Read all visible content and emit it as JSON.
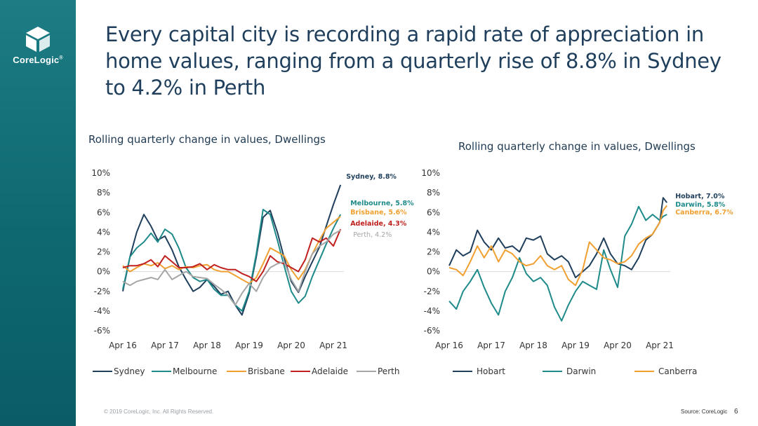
{
  "brand": {
    "name": "CoreLogic",
    "registered": "®"
  },
  "headline": "Every capital city is recording a rapid rate of appreciation in home values, ranging from a quarterly rise of 8.8% in Sydney to 4.2% in Perth",
  "footer": {
    "copyright": "© 2019 CoreLogic, Inc. All Rights Reserved.",
    "source": "Source: CoreLogic",
    "page": "6"
  },
  "colors": {
    "sidebar": "#0e6870",
    "sydney": "#1f3f5c",
    "melbourne": "#1f8a8a",
    "brisbane": "#f0a030",
    "adelaide": "#c0201e",
    "perth": "#a6a6a6",
    "hobart": "#1f3f5c",
    "darwin": "#1f8a8a",
    "canberra": "#f0a030"
  },
  "chart_data": [
    {
      "type": "line",
      "title": "Rolling quarterly change in values,  Dwellings",
      "y_ticks": [
        "10%",
        "8%",
        "6%",
        "4%",
        "2%",
        "0%",
        "-2%",
        "-4%",
        "-6%"
      ],
      "x_ticks": [
        "Apr 16",
        "Apr 17",
        "Apr 18",
        "Apr 19",
        "Apr 20",
        "Apr 21"
      ],
      "ylim": [
        -6,
        10
      ],
      "xlim": [
        2016.25,
        2021.5
      ],
      "legend": "bottom",
      "series": [
        {
          "name": "Sydney",
          "color": "#1f3f5c",
          "label": "Sydney, 8.8%",
          "x": [
            2016.25,
            2016.42,
            2016.58,
            2016.75,
            2016.92,
            2017.08,
            2017.25,
            2017.42,
            2017.58,
            2017.75,
            2017.92,
            2018.08,
            2018.25,
            2018.42,
            2018.58,
            2018.75,
            2018.92,
            2019.08,
            2019.25,
            2019.42,
            2019.58,
            2019.75,
            2019.92,
            2020.08,
            2020.25,
            2020.42,
            2020.58,
            2020.75,
            2020.92,
            2021.08,
            2021.25,
            2021.42
          ],
          "values": [
            -2.0,
            1.5,
            4.0,
            5.8,
            4.6,
            3.2,
            3.6,
            2.2,
            0.5,
            -0.8,
            -2.0,
            -1.6,
            -0.8,
            -1.5,
            -2.3,
            -2.0,
            -3.4,
            -4.4,
            -2.2,
            1.5,
            5.5,
            6.2,
            4.0,
            1.4,
            -1.0,
            -2.1,
            -0.5,
            1.0,
            2.5,
            4.6,
            6.8,
            8.8
          ]
        },
        {
          "name": "Melbourne",
          "color": "#1f8a8a",
          "label": "Melbourne, 5.8%",
          "x": [
            2016.25,
            2016.42,
            2016.58,
            2016.75,
            2016.92,
            2017.08,
            2017.25,
            2017.42,
            2017.58,
            2017.75,
            2017.92,
            2018.08,
            2018.25,
            2018.42,
            2018.58,
            2018.75,
            2018.92,
            2019.08,
            2019.25,
            2019.42,
            2019.58,
            2019.75,
            2019.92,
            2020.08,
            2020.25,
            2020.42,
            2020.58,
            2020.75,
            2020.92,
            2021.08,
            2021.25,
            2021.42
          ],
          "values": [
            -1.8,
            1.5,
            2.4,
            3.0,
            3.9,
            3.0,
            4.3,
            3.8,
            2.4,
            0.4,
            -0.6,
            -1.0,
            -0.8,
            -1.8,
            -2.4,
            -2.4,
            -3.4,
            -4.0,
            -2.0,
            1.8,
            6.3,
            5.8,
            3.2,
            0.6,
            -2.0,
            -3.2,
            -2.5,
            -0.5,
            1.2,
            2.8,
            4.4,
            5.8
          ]
        },
        {
          "name": "Brisbane",
          "color": "#f0a030",
          "label": "Brisbane, 5.6%",
          "x": [
            2016.25,
            2016.42,
            2016.58,
            2016.75,
            2016.92,
            2017.08,
            2017.25,
            2017.42,
            2017.58,
            2017.75,
            2017.92,
            2018.08,
            2018.25,
            2018.42,
            2018.58,
            2018.75,
            2018.92,
            2019.08,
            2019.25,
            2019.42,
            2019.58,
            2019.75,
            2019.92,
            2020.08,
            2020.25,
            2020.42,
            2020.58,
            2020.75,
            2020.92,
            2021.08,
            2021.25,
            2021.42
          ],
          "values": [
            0.6,
            0.0,
            0.4,
            0.8,
            0.6,
            0.9,
            0.3,
            0.6,
            0.2,
            0.5,
            0.4,
            0.6,
            0.7,
            0.2,
            0.0,
            0.0,
            -0.4,
            -0.8,
            -1.2,
            -0.6,
            0.8,
            2.4,
            2.0,
            1.6,
            0.2,
            -0.8,
            0.2,
            1.8,
            3.2,
            4.4,
            5.0,
            5.6
          ]
        },
        {
          "name": "Adelaide",
          "color": "#c0201e",
          "label": "Adelaide, 4.3%",
          "x": [
            2016.25,
            2016.42,
            2016.58,
            2016.75,
            2016.92,
            2017.08,
            2017.25,
            2017.42,
            2017.58,
            2017.75,
            2017.92,
            2018.08,
            2018.25,
            2018.42,
            2018.58,
            2018.75,
            2018.92,
            2019.08,
            2019.25,
            2019.42,
            2019.58,
            2019.75,
            2019.92,
            2020.08,
            2020.25,
            2020.42,
            2020.58,
            2020.75,
            2020.92,
            2021.08,
            2021.25,
            2021.42
          ],
          "values": [
            0.4,
            0.6,
            0.6,
            0.8,
            1.2,
            0.5,
            1.6,
            1.0,
            0.4,
            0.4,
            0.5,
            0.8,
            0.2,
            0.7,
            0.4,
            0.2,
            0.2,
            -0.2,
            -0.5,
            -1.0,
            0.0,
            1.6,
            1.0,
            0.8,
            0.4,
            0.0,
            1.2,
            3.4,
            3.0,
            3.4,
            2.6,
            4.3
          ]
        },
        {
          "name": "Perth",
          "color": "#a6a6a6",
          "label": "Perth, 4.2%",
          "x": [
            2016.25,
            2016.42,
            2016.58,
            2016.75,
            2016.92,
            2017.08,
            2017.25,
            2017.42,
            2017.58,
            2017.75,
            2017.92,
            2018.08,
            2018.25,
            2018.42,
            2018.58,
            2018.75,
            2018.92,
            2019.08,
            2019.25,
            2019.42,
            2019.58,
            2019.75,
            2019.92,
            2020.08,
            2020.25,
            2020.42,
            2020.58,
            2020.75,
            2020.92,
            2021.08,
            2021.25,
            2021.42
          ],
          "values": [
            -1.0,
            -1.4,
            -1.0,
            -0.8,
            -0.6,
            -0.8,
            0.2,
            -0.8,
            -0.4,
            0.0,
            -0.5,
            -0.6,
            -0.7,
            -1.3,
            -1.8,
            -2.4,
            -3.4,
            -2.2,
            -1.2,
            -2.0,
            -0.6,
            0.4,
            0.8,
            1.0,
            -0.8,
            -2.0,
            0.0,
            1.8,
            2.6,
            3.0,
            3.8,
            4.2
          ]
        }
      ]
    },
    {
      "type": "line",
      "title": "Rolling quarterly change in values,  Dwellings",
      "y_ticks": [
        "10%",
        "8%",
        "6%",
        "4%",
        "2%",
        "0%",
        "-2%",
        "-4%",
        "-6%"
      ],
      "x_ticks": [
        "Apr 16",
        "Apr 17",
        "Apr 18",
        "Apr 19",
        "Apr 20",
        "Apr 21"
      ],
      "ylim": [
        -6,
        10
      ],
      "xlim": [
        2016.25,
        2021.5
      ],
      "legend": "bottom",
      "series": [
        {
          "name": "Hobart",
          "color": "#1f3f5c",
          "label": "Hobart, 7.0%",
          "x": [
            2016.25,
            2016.42,
            2016.58,
            2016.75,
            2016.92,
            2017.08,
            2017.25,
            2017.42,
            2017.58,
            2017.75,
            2017.92,
            2018.08,
            2018.25,
            2018.42,
            2018.58,
            2018.75,
            2018.92,
            2019.08,
            2019.25,
            2019.42,
            2019.58,
            2019.75,
            2019.92,
            2020.08,
            2020.25,
            2020.42,
            2020.58,
            2020.75,
            2020.92,
            2021.08,
            2021.25,
            2021.33,
            2021.42
          ],
          "values": [
            0.6,
            2.2,
            1.6,
            2.0,
            4.2,
            3.0,
            2.2,
            3.4,
            2.4,
            2.6,
            2.0,
            3.4,
            3.2,
            3.6,
            1.8,
            1.2,
            1.6,
            1.0,
            -0.6,
            0.0,
            0.6,
            1.8,
            3.4,
            1.8,
            0.8,
            0.6,
            0.2,
            1.4,
            3.2,
            3.8,
            5.0,
            7.5,
            7.0
          ]
        },
        {
          "name": "Darwin",
          "color": "#1f8a8a",
          "label": "Darwin, 5.8%",
          "x": [
            2016.25,
            2016.42,
            2016.58,
            2016.75,
            2016.92,
            2017.08,
            2017.25,
            2017.42,
            2017.58,
            2017.75,
            2017.92,
            2018.08,
            2018.25,
            2018.42,
            2018.58,
            2018.75,
            2018.92,
            2019.08,
            2019.25,
            2019.42,
            2019.58,
            2019.75,
            2019.92,
            2020.08,
            2020.25,
            2020.42,
            2020.58,
            2020.75,
            2020.92,
            2021.08,
            2021.25,
            2021.33,
            2021.42
          ],
          "values": [
            -3.0,
            -3.8,
            -2.0,
            -1.0,
            0.2,
            -1.6,
            -3.2,
            -4.4,
            -2.0,
            -0.6,
            1.4,
            -0.2,
            -1.0,
            -0.6,
            -1.4,
            -3.6,
            -5.0,
            -3.4,
            -2.0,
            -1.0,
            -1.4,
            -1.8,
            2.2,
            0.2,
            -1.6,
            3.6,
            4.8,
            6.6,
            5.2,
            5.8,
            5.2,
            5.6,
            5.8
          ]
        },
        {
          "name": "Canberra",
          "color": "#f0a030",
          "label": "Canberra, 6.7%",
          "x": [
            2016.25,
            2016.42,
            2016.58,
            2016.75,
            2016.92,
            2017.08,
            2017.25,
            2017.42,
            2017.58,
            2017.75,
            2017.92,
            2018.08,
            2018.25,
            2018.42,
            2018.58,
            2018.75,
            2018.92,
            2019.08,
            2019.25,
            2019.42,
            2019.58,
            2019.75,
            2019.92,
            2020.08,
            2020.25,
            2020.42,
            2020.58,
            2020.75,
            2020.92,
            2021.08,
            2021.25,
            2021.33,
            2021.42
          ],
          "values": [
            0.4,
            0.2,
            -0.4,
            1.0,
            2.6,
            1.4,
            2.6,
            1.0,
            2.2,
            1.8,
            1.0,
            0.6,
            0.8,
            1.6,
            0.6,
            0.2,
            0.6,
            -0.8,
            -1.4,
            0.2,
            3.0,
            2.2,
            1.4,
            1.2,
            0.8,
            1.0,
            1.6,
            2.8,
            3.4,
            3.8,
            5.0,
            6.2,
            6.7
          ]
        }
      ]
    }
  ]
}
